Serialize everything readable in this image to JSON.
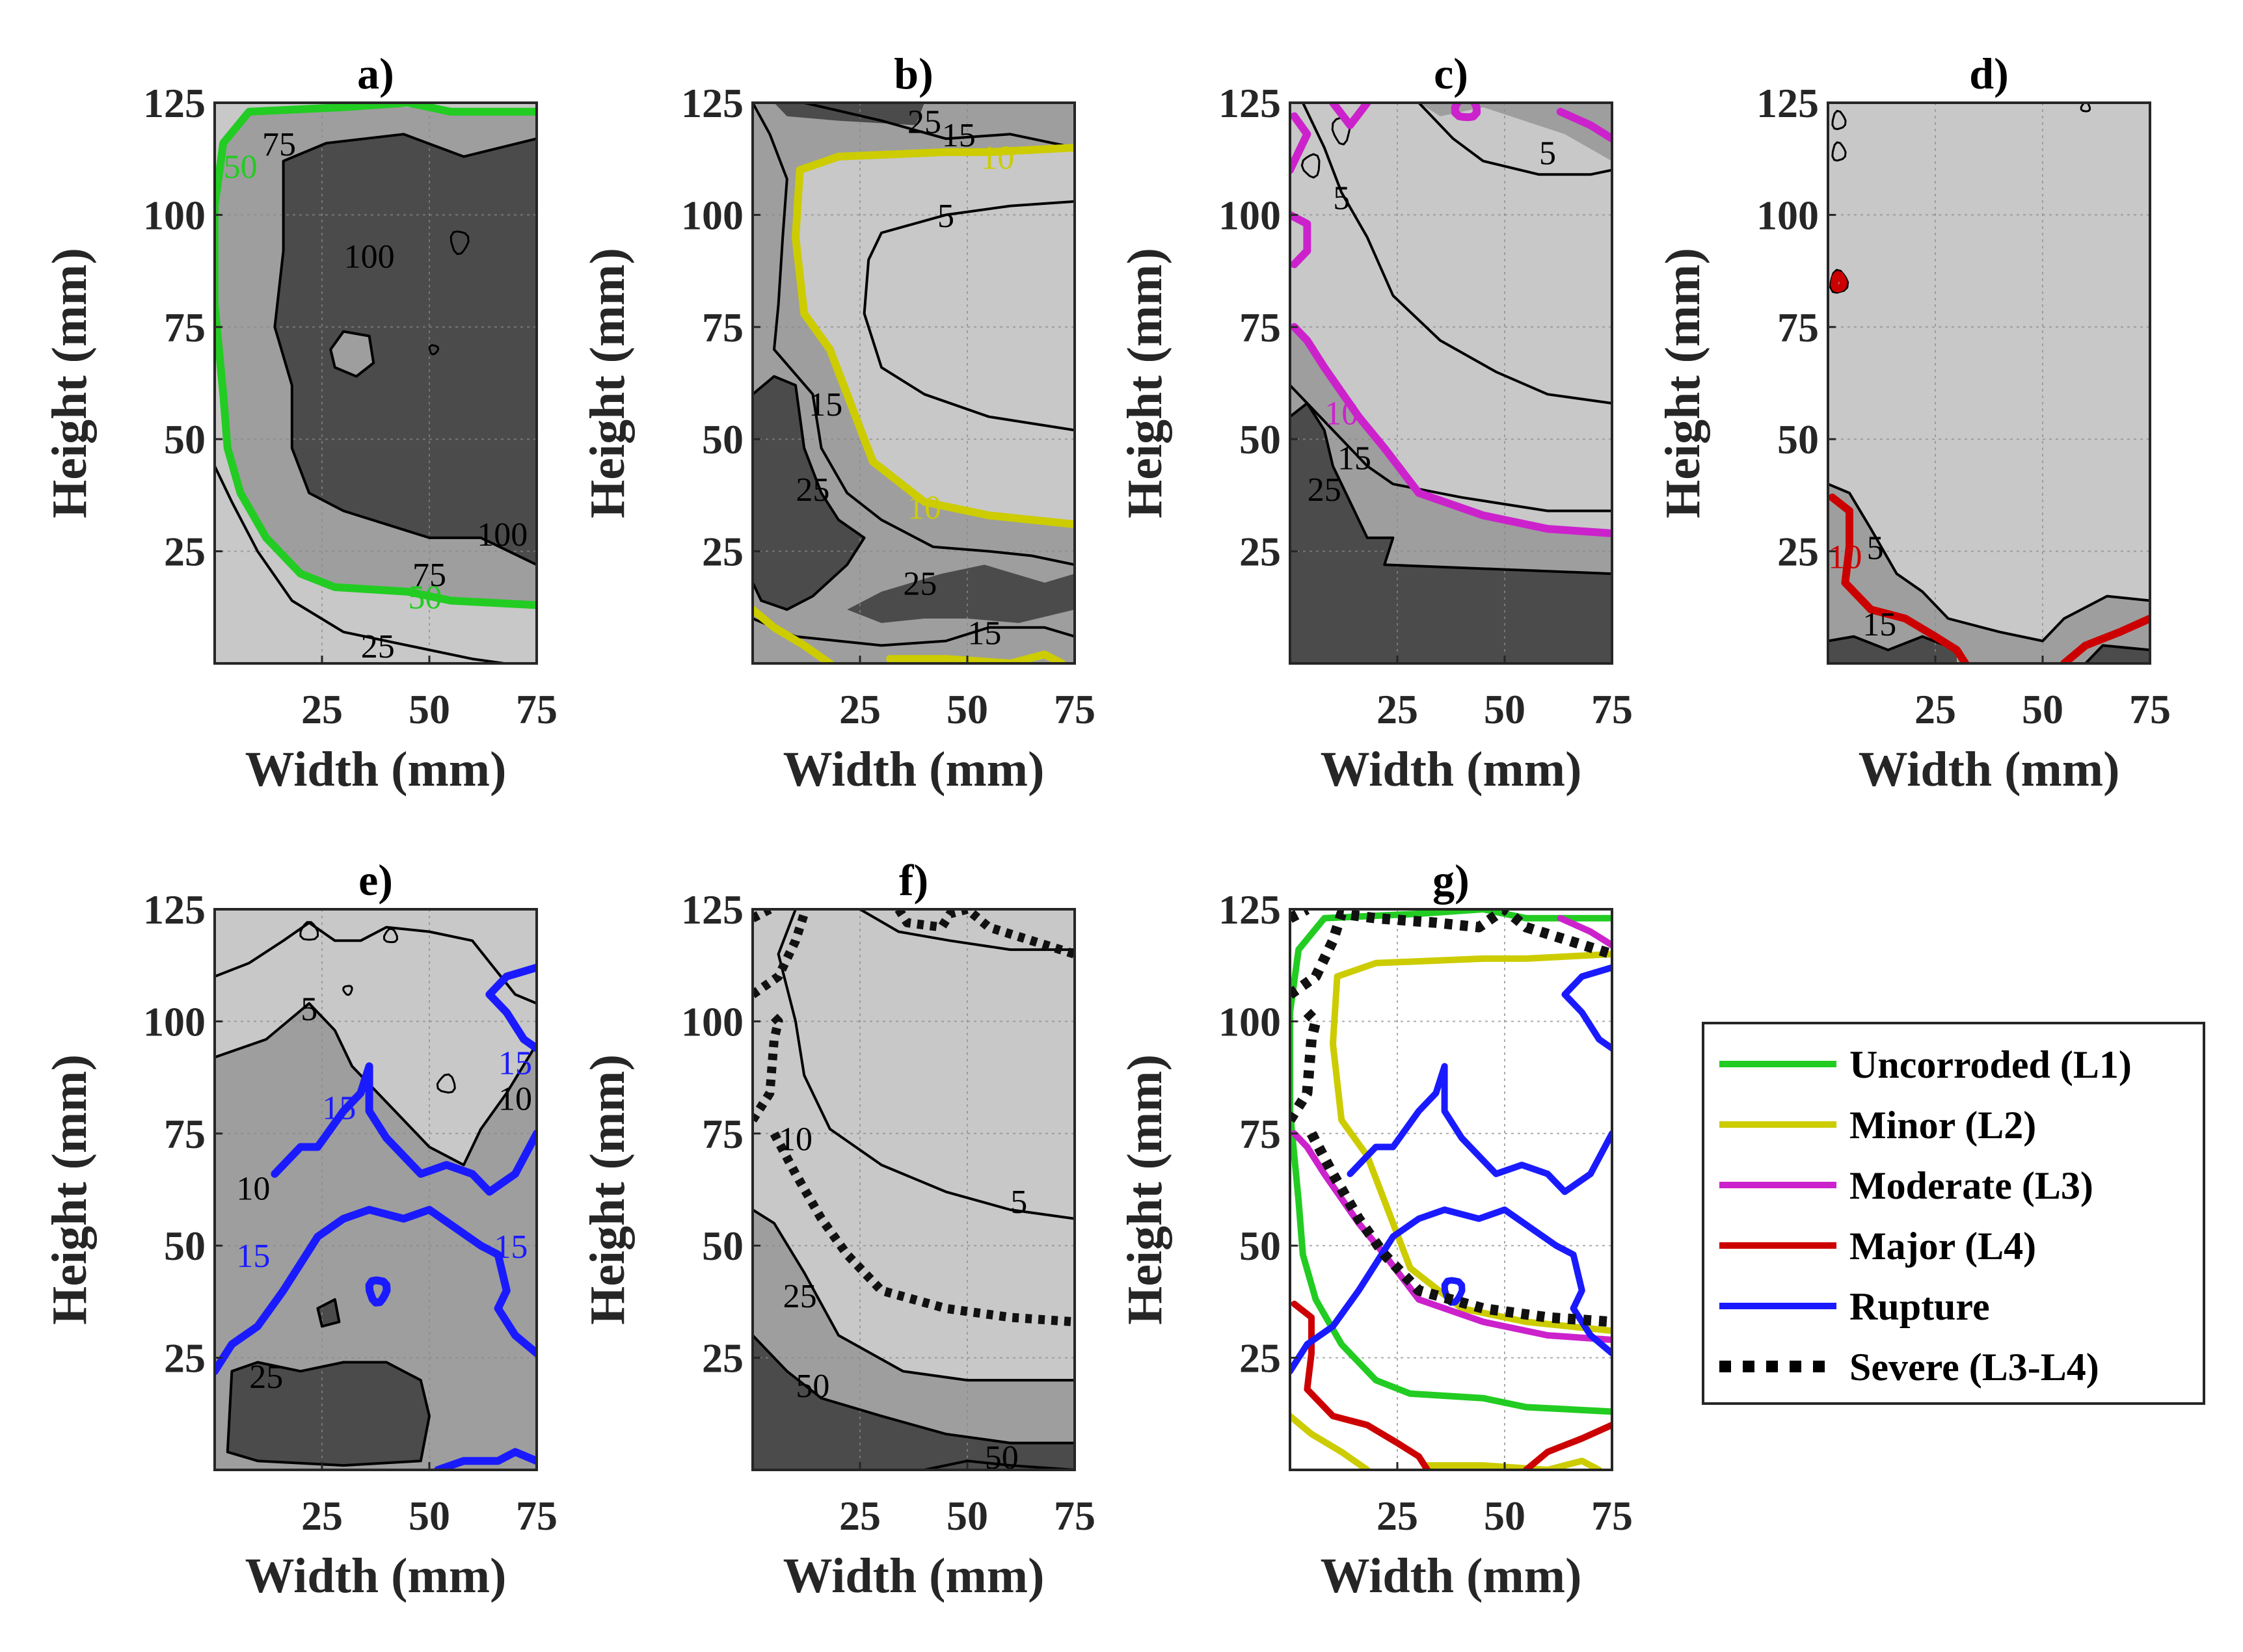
{
  "chart_data": {
    "type": "contour",
    "xlabel": "Width (mm)",
    "ylabel": "Height (mm)",
    "xlim": [
      0,
      75
    ],
    "ylim": [
      0,
      125
    ],
    "xticks": [
      25,
      50,
      75
    ],
    "yticks": [
      25,
      50,
      75,
      100,
      125
    ],
    "fill_colors": {
      "light": "#c8c8c8",
      "mid": "#9e9e9e",
      "dark": "#4b4b4b"
    },
    "panels": [
      {
        "title": "a)",
        "labels": [
          {
            "text": "75",
            "x": 15,
            "y": 115
          },
          {
            "text": "100",
            "x": 36,
            "y": 90
          },
          {
            "text": "100",
            "x": 67,
            "y": 28
          },
          {
            "text": "75",
            "x": 50,
            "y": 19
          },
          {
            "text": "25",
            "x": 38,
            "y": 3
          },
          {
            "text": "50",
            "x": 6,
            "y": 110,
            "color": "#22cc22"
          },
          {
            "text": "50",
            "x": 49,
            "y": 14,
            "color": "#22cc22"
          }
        ]
      },
      {
        "title": "b)",
        "labels": [
          {
            "text": "25",
            "x": 40,
            "y": 120
          },
          {
            "text": "15",
            "x": 48,
            "y": 117
          },
          {
            "text": "10",
            "x": 57,
            "y": 112,
            "color": "#cccc00"
          },
          {
            "text": "5",
            "x": 45,
            "y": 99
          },
          {
            "text": "15",
            "x": 17,
            "y": 57
          },
          {
            "text": "25",
            "x": 14,
            "y": 38
          },
          {
            "text": "10",
            "x": 40,
            "y": 34,
            "color": "#cccc00"
          },
          {
            "text": "25",
            "x": 39,
            "y": 17
          },
          {
            "text": "15",
            "x": 54,
            "y": 6
          }
        ]
      },
      {
        "title": "c)",
        "labels": [
          {
            "text": "5",
            "x": 60,
            "y": 113
          },
          {
            "text": "5",
            "x": 12,
            "y": 103
          },
          {
            "text": "10",
            "x": 12,
            "y": 55,
            "color": "#cc22cc"
          },
          {
            "text": "15",
            "x": 15,
            "y": 45
          },
          {
            "text": "25",
            "x": 8,
            "y": 38
          }
        ]
      },
      {
        "title": "d)",
        "labels": [
          {
            "text": "5",
            "x": 11,
            "y": 25
          },
          {
            "text": "10",
            "x": 4,
            "y": 23,
            "color": "#cc0000"
          },
          {
            "text": "15",
            "x": 12,
            "y": 8
          }
        ]
      },
      {
        "title": "e)",
        "labels": [
          {
            "text": "5",
            "x": 22,
            "y": 102
          },
          {
            "text": "15",
            "x": 29,
            "y": 80,
            "color": "#1a1aff"
          },
          {
            "text": "15",
            "x": 70,
            "y": 90,
            "color": "#1a1aff"
          },
          {
            "text": "10",
            "x": 70,
            "y": 82
          },
          {
            "text": "10",
            "x": 9,
            "y": 62
          },
          {
            "text": "15",
            "x": 9,
            "y": 47,
            "color": "#1a1aff"
          },
          {
            "text": "15",
            "x": 69,
            "y": 49,
            "color": "#1a1aff"
          },
          {
            "text": "25",
            "x": 12,
            "y": 20
          }
        ]
      },
      {
        "title": "f)",
        "labels": [
          {
            "text": "10",
            "x": 10,
            "y": 73
          },
          {
            "text": "5",
            "x": 62,
            "y": 59
          },
          {
            "text": "25",
            "x": 11,
            "y": 38
          },
          {
            "text": "50",
            "x": 14,
            "y": 18
          },
          {
            "text": "50",
            "x": 58,
            "y": 2
          }
        ]
      },
      {
        "title": "g)",
        "labels": []
      }
    ],
    "legend": {
      "position": "right",
      "entries": [
        {
          "label": "Uncorroded (L1)",
          "color": "#22cc22",
          "style": "solid"
        },
        {
          "label": "Minor (L2)",
          "color": "#cccc00",
          "style": "solid"
        },
        {
          "label": "Moderate (L3)",
          "color": "#cc22cc",
          "style": "solid"
        },
        {
          "label": "Major (L4)",
          "color": "#cc0000",
          "style": "solid"
        },
        {
          "label": "Rupture",
          "color": "#1a1aff",
          "style": "solid"
        },
        {
          "label": "Severe (L3-L4)",
          "color": "#000000",
          "style": "dotted"
        }
      ]
    }
  }
}
